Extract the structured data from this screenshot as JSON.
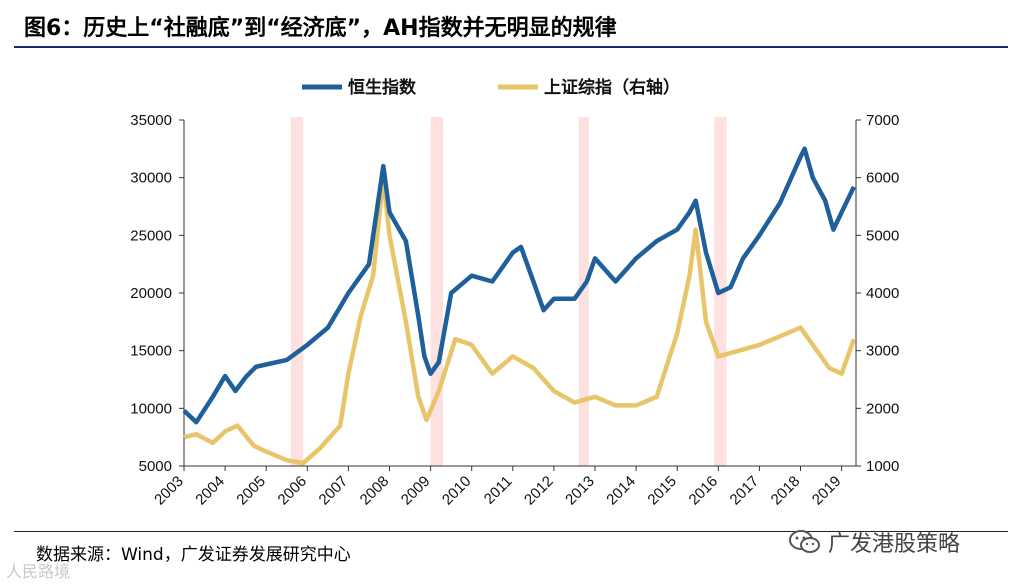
{
  "title": "图6：历史上“社融底”到“经济底”，AH指数并无明显的规律",
  "source": "数据来源：Wind，广发证券发展研究中心",
  "watermark_left": "人民路境",
  "watermark_right": "广发港股策略",
  "colors": {
    "hsi": "#1f5f9a",
    "shcomp": "#e8c56a",
    "shade": "#fde0e0",
    "rule": "#1a2a6c"
  },
  "icons": {
    "wechat": "wechat-icon"
  },
  "chart_data": {
    "type": "line",
    "legend": {
      "placement": "top-center"
    },
    "x_ticks": [
      "2003",
      "2004",
      "2005",
      "2006",
      "2007",
      "2008",
      "2009",
      "2010",
      "2011",
      "2012",
      "2013",
      "2014",
      "2015",
      "2016",
      "2017",
      "2018",
      "2019"
    ],
    "y_left": {
      "range": [
        5000,
        35000
      ],
      "ticks": [
        5000,
        10000,
        15000,
        20000,
        25000,
        30000,
        35000
      ]
    },
    "y_right": {
      "range": [
        1000,
        7000
      ],
      "ticks": [
        1000,
        2000,
        3000,
        4000,
        5000,
        6000,
        7000
      ]
    },
    "shaded_periods": [
      {
        "start": 2005.6,
        "end": 2005.9
      },
      {
        "start": 2009.0,
        "end": 2009.3
      },
      {
        "start": 2012.6,
        "end": 2012.85
      },
      {
        "start": 2015.9,
        "end": 2016.2
      }
    ],
    "series": [
      {
        "name": "恒生指数",
        "axis": "left",
        "x": [
          2003.0,
          2003.3,
          2003.7,
          2004.0,
          2004.25,
          2004.5,
          2004.75,
          2005.0,
          2005.5,
          2006.0,
          2006.5,
          2007.0,
          2007.5,
          2007.85,
          2008.0,
          2008.4,
          2008.7,
          2008.85,
          2009.0,
          2009.2,
          2009.5,
          2010.0,
          2010.5,
          2011.0,
          2011.2,
          2011.5,
          2011.75,
          2012.0,
          2012.5,
          2012.8,
          2013.0,
          2013.5,
          2014.0,
          2014.5,
          2015.0,
          2015.3,
          2015.45,
          2015.7,
          2016.0,
          2016.3,
          2016.6,
          2017.0,
          2017.5,
          2018.0,
          2018.1,
          2018.3,
          2018.6,
          2018.8,
          2019.0,
          2019.3
        ],
        "values": [
          9800,
          8800,
          11000,
          12800,
          11500,
          12700,
          13600,
          13800,
          14200,
          15500,
          17000,
          20000,
          22500,
          31000,
          27000,
          24500,
          18000,
          14500,
          13000,
          14000,
          20000,
          21500,
          21000,
          23500,
          24000,
          21000,
          18500,
          19500,
          19500,
          21000,
          23000,
          21000,
          23000,
          24500,
          25500,
          27000,
          28000,
          23500,
          20000,
          20500,
          23000,
          25000,
          27800,
          31800,
          32500,
          30000,
          28000,
          25500,
          27000,
          29200
        ]
      },
      {
        "name": "上证综指（右轴）",
        "axis": "right",
        "x": [
          2003.0,
          2003.3,
          2003.7,
          2004.0,
          2004.3,
          2004.7,
          2005.0,
          2005.5,
          2005.9,
          2006.3,
          2006.8,
          2007.0,
          2007.3,
          2007.6,
          2007.85,
          2008.0,
          2008.4,
          2008.7,
          2008.9,
          2009.2,
          2009.6,
          2010.0,
          2010.5,
          2011.0,
          2011.5,
          2012.0,
          2012.5,
          2013.0,
          2013.5,
          2014.0,
          2014.5,
          2015.0,
          2015.3,
          2015.45,
          2015.7,
          2016.0,
          2016.5,
          2017.0,
          2017.5,
          2018.0,
          2018.3,
          2018.7,
          2019.0,
          2019.3
        ],
        "values": [
          1500,
          1550,
          1400,
          1600,
          1700,
          1350,
          1250,
          1100,
          1050,
          1300,
          1700,
          2600,
          3600,
          4300,
          6000,
          5000,
          3500,
          2200,
          1800,
          2300,
          3200,
          3100,
          2600,
          2900,
          2700,
          2300,
          2100,
          2200,
          2050,
          2050,
          2200,
          3300,
          4300,
          5100,
          3500,
          2900,
          3000,
          3100,
          3250,
          3400,
          3100,
          2700,
          2600,
          3200
        ]
      }
    ]
  }
}
